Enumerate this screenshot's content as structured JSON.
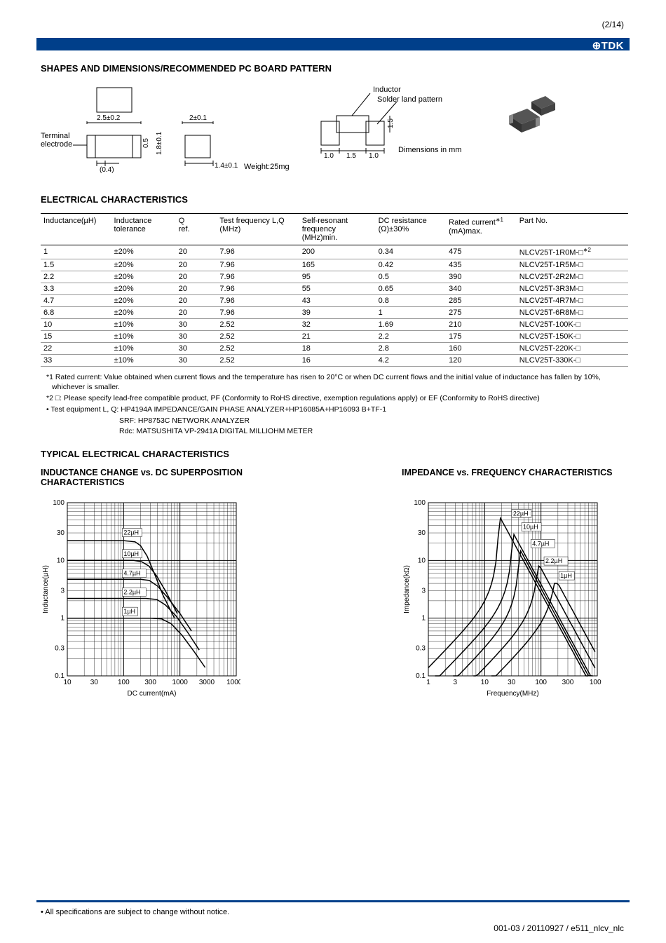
{
  "page_number": "(2/14)",
  "logo_text": "⊕TDK",
  "section1_title": "SHAPES AND DIMENSIONS/RECOMMENDED PC BOARD PATTERN",
  "shapes": {
    "terminal_label": "Terminal\nelectrode",
    "dim_2_5": "2.5±0.2",
    "dim_2_0": "2±0.1",
    "dim_0_5": "0.5",
    "dim_1_8": "1.8±0.1",
    "dim_0_4": "(0.4)",
    "dim_1_4": "1.4±0.1",
    "weight": "Weight:25mg",
    "inductor_label": "Inductor",
    "solder_label": "Solder land pattern",
    "pad_1_0a": "1.0",
    "pad_1_5": "1.5",
    "pad_1_0b": "1.0",
    "pad_h": "1.5",
    "dim_note": "Dimensions in mm"
  },
  "section2_title": "ELECTRICAL CHARACTERISTICS",
  "table": {
    "headers": [
      "Inductance(µH)",
      "Inductance\ntolerance",
      "Q\nref.",
      "Test frequency L,Q\n(MHz)",
      "Self-resonant\nfrequency\n(MHz)min.",
      "DC resistance\n(Ω)±30%",
      "Rated current*1\n(mA)max.",
      "Part No."
    ],
    "col_widths": [
      "12%",
      "11%",
      "7%",
      "14%",
      "13%",
      "12%",
      "12%",
      "19%"
    ],
    "rows": [
      [
        "1",
        "±20%",
        "20",
        "7.96",
        "200",
        "0.34",
        "475",
        "NLCV25T-1R0M-□*2"
      ],
      [
        "1.5",
        "±20%",
        "20",
        "7.96",
        "165",
        "0.42",
        "435",
        "NLCV25T-1R5M-□"
      ],
      [
        "2.2",
        "±20%",
        "20",
        "7.96",
        "95",
        "0.5",
        "390",
        "NLCV25T-2R2M-□"
      ],
      [
        "3.3",
        "±20%",
        "20",
        "7.96",
        "55",
        "0.65",
        "340",
        "NLCV25T-3R3M-□"
      ],
      [
        "4.7",
        "±20%",
        "20",
        "7.96",
        "43",
        "0.8",
        "285",
        "NLCV25T-4R7M-□"
      ],
      [
        "6.8",
        "±20%",
        "20",
        "7.96",
        "39",
        "1",
        "275",
        "NLCV25T-6R8M-□"
      ],
      [
        "10",
        "±10%",
        "30",
        "2.52",
        "32",
        "1.69",
        "210",
        "NLCV25T-100K-□"
      ],
      [
        "15",
        "±10%",
        "30",
        "2.52",
        "21",
        "2.2",
        "175",
        "NLCV25T-150K-□"
      ],
      [
        "22",
        "±10%",
        "30",
        "2.52",
        "18",
        "2.8",
        "160",
        "NLCV25T-220K-□"
      ],
      [
        "33",
        "±10%",
        "30",
        "2.52",
        "16",
        "4.2",
        "120",
        "NLCV25T-330K-□"
      ]
    ]
  },
  "footnotes": {
    "fn1": "*1 Rated current: Value obtained when current flows and the temperature has risen to 20°C or when DC current flows and the initial value of inductance has fallen by 10%, whichever is smaller.",
    "fn2": "*2 □: Please specify lead-free compatible product, PF (Conformity to RoHS directive, exemption regulations apply) or EF (Conformity to RoHS directive)",
    "fn3": "• Test equipment  L, Q: HP4194A IMPEDANCE/GAIN PHASE ANALYZER+HP16085A+HP16093 B+TF-1",
    "fn3b": "SRF: HP8753C NETWORK ANALYZER",
    "fn3c": "Rdc: MATSUSHITA VP-2941A DIGITAL MILLIOHM METER"
  },
  "section3_title": "TYPICAL ELECTRICAL CHARACTERISTICS",
  "chart1_title": "INDUCTANCE CHANGE vs. DC SUPERPOSITION CHARACTERISTICS",
  "chart2_title": "IMPEDANCE vs. FREQUENCY CHARACTERISTICS",
  "chart1": {
    "type": "line-loglog",
    "xlabel": "DC current(mA)",
    "ylabel": "Inductance(µH)",
    "x_ticks": [
      "10",
      "30",
      "100",
      "300",
      "1000",
      "3000",
      "10000"
    ],
    "y_ticks": [
      "0.1",
      "0.3",
      "1",
      "3",
      "10",
      "30",
      "100"
    ],
    "xlim": [
      10,
      10000
    ],
    "ylim": [
      0.1,
      100
    ],
    "series_labels": [
      "22µH",
      "10µH",
      "4.7µH",
      "2.2µH",
      "1µH"
    ],
    "bg": "#ffffff",
    "grid": "#000000",
    "line_color": "#000000"
  },
  "chart2": {
    "type": "line-loglog",
    "xlabel": "Frequency(MHz)",
    "ylabel": "Impedance(kΩ)",
    "x_ticks": [
      "1",
      "3",
      "10",
      "30",
      "100",
      "300",
      "1000"
    ],
    "y_ticks": [
      "0.1",
      "0.3",
      "1",
      "3",
      "10",
      "30",
      "100"
    ],
    "xlim": [
      1,
      1000
    ],
    "ylim": [
      0.1,
      100
    ],
    "series_labels": [
      "22µH",
      "10µH",
      "4.7µH",
      "2.2µH",
      "1µH"
    ],
    "bg": "#ffffff",
    "grid": "#000000",
    "line_color": "#000000"
  },
  "footer_note": "• All specifications are subject to change without notice.",
  "footer_code": "001-03 / 20110927 / e511_nlcv_nlc"
}
